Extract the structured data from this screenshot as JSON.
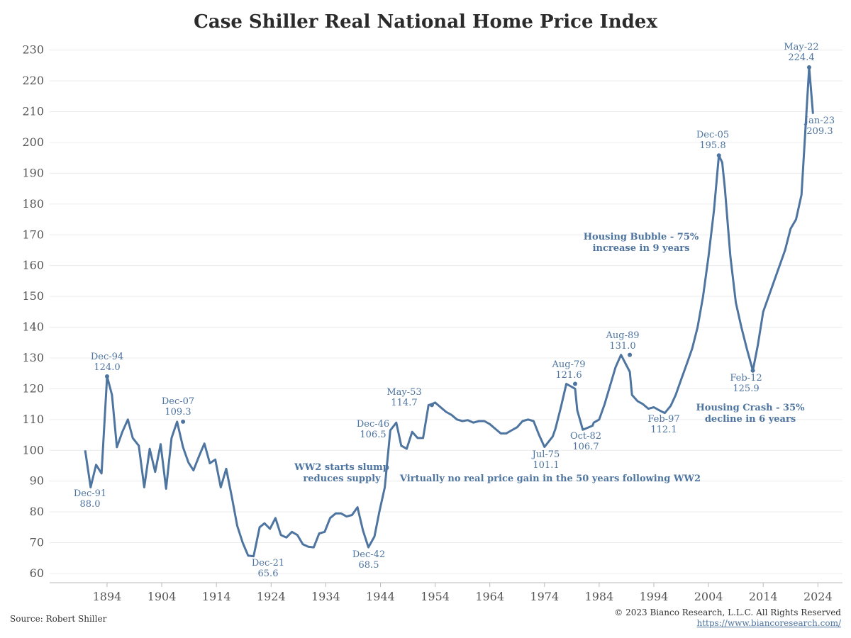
{
  "chart_data": {
    "type": "line",
    "title": "Case Shiller Real National Home Price Index",
    "ylim": [
      57,
      232
    ],
    "xlim": [
      1883.5,
      2028.5
    ],
    "yticks": [
      60,
      70,
      80,
      90,
      100,
      110,
      120,
      130,
      140,
      150,
      160,
      170,
      180,
      190,
      200,
      210,
      220,
      230
    ],
    "xticks": [
      1894,
      1904,
      1914,
      1924,
      1934,
      1944,
      1954,
      1964,
      1974,
      1984,
      1994,
      2004,
      2014,
      2024
    ],
    "grid": true,
    "color": "#4e74a0",
    "series": [
      {
        "x": [
          1890,
          1891,
          1892,
          1893,
          1894,
          1894.9,
          1895.8,
          1896.8,
          1897.8,
          1898.7,
          1899.8,
          1900.8,
          1901.8,
          1902.8,
          1903.8,
          1904.8,
          1905.8,
          1906.8,
          1907.9,
          1908.9,
          1909.8,
          1910.8,
          1911.8,
          1912.8,
          1913.8,
          1914.8,
          1915.8,
          1916.8,
          1917.8,
          1918.8,
          1919.8,
          1920.8,
          1921.9,
          1922.8,
          1923.8,
          1924.8,
          1925.8,
          1926.8,
          1927.8,
          1928.8,
          1929.8,
          1930.8,
          1931.8,
          1932.8,
          1933.8,
          1934.8,
          1935.8,
          1936.8,
          1937.8,
          1938.8,
          1939.8,
          1940.8,
          1941.8,
          1942.9,
          1943.8,
          1944.8,
          1945.8,
          1946.9,
          1947.8,
          1948.8,
          1949.8,
          1950.8,
          1951.8,
          1952.8,
          1953.4,
          1954,
          1955,
          1956,
          1957,
          1958,
          1959,
          1960,
          1961,
          1962,
          1963,
          1964,
          1965,
          1966,
          1967,
          1968,
          1969,
          1970,
          1971,
          1972,
          1973,
          1974,
          1975.5,
          1976,
          1977,
          1978,
          1979.6,
          1980,
          1981,
          1982.8,
          1983,
          1984,
          1985,
          1986,
          1987,
          1988,
          1989.6,
          1990,
          1991,
          1992,
          1993,
          1994,
          1995,
          1996,
          1997.1,
          1998,
          1999,
          2000,
          2001,
          2002,
          2003,
          2004,
          2005,
          2005.9,
          2006.5,
          2007,
          2008,
          2009,
          2010,
          2011,
          2012.1,
          2013,
          2014,
          2015,
          2016,
          2017,
          2018,
          2019,
          2020,
          2021,
          2022.4,
          2023.1
        ],
        "y": [
          100,
          88,
          95.3,
          92.5,
          124,
          118,
          101,
          106,
          110,
          104,
          101.5,
          88,
          100.5,
          93,
          102,
          87.5,
          104,
          109.3,
          101,
          96,
          93.5,
          98,
          102.2,
          95.8,
          97,
          88,
          94,
          85,
          75.5,
          70,
          65.8,
          65.6,
          75,
          76.3,
          74.5,
          78,
          72.5,
          71.7,
          73.5,
          72.5,
          69.5,
          68.7,
          68.5,
          73,
          73.5,
          78,
          79.5,
          79.5,
          78.5,
          79,
          81.5,
          74,
          68.5,
          72,
          80,
          88,
          106.5,
          109,
          101.5,
          100.5,
          106,
          104,
          104,
          114.7,
          115,
          115.5,
          114,
          112.5,
          111.5,
          110,
          109.5,
          109.8,
          109,
          109.5,
          109.5,
          108.5,
          107,
          105.5,
          105.5,
          106.5,
          107.5,
          109.5,
          110,
          109.5,
          105,
          101.1,
          104.5,
          107,
          114,
          121.6,
          120,
          113,
          106.7,
          108,
          109,
          110,
          115,
          121,
          127,
          131,
          125.5,
          118,
          116,
          115,
          113.5,
          114,
          113,
          112.1,
          114.5,
          118,
          123,
          128,
          133,
          140,
          150,
          163,
          178,
          195.8,
          193.5,
          185,
          163,
          148,
          140,
          133,
          125.9,
          134,
          145,
          150,
          155,
          160,
          165,
          172,
          175,
          183,
          224.4,
          209.3
        ]
      }
    ],
    "point_labels": [
      {
        "name": "Dec-91",
        "value": "88.0"
      },
      {
        "name": "Dec-94",
        "value": "124.0"
      },
      {
        "name": "Dec-07",
        "value": "109.3"
      },
      {
        "name": "Dec-21",
        "value": "65.6"
      },
      {
        "name": "Dec-42",
        "value": "68.5"
      },
      {
        "name": "Dec-46",
        "value": "106.5"
      },
      {
        "name": "May-53",
        "value": "114.7"
      },
      {
        "name": "Jul-75",
        "value": "101.1"
      },
      {
        "name": "Aug-79",
        "value": "121.6"
      },
      {
        "name": "Oct-82",
        "value": "106.7"
      },
      {
        "name": "Aug-89",
        "value": "131.0"
      },
      {
        "name": "Feb-97",
        "value": "112.1"
      },
      {
        "name": "Dec-05",
        "value": "195.8"
      },
      {
        "name": "Feb-12",
        "value": "125.9"
      },
      {
        "name": "May-22",
        "value": "224.4"
      },
      {
        "name": "Jan-23",
        "value": "209.3"
      }
    ],
    "annotations": [
      {
        "lines": [
          "WW2 starts slump",
          "reduces supply"
        ]
      },
      {
        "lines": [
          "Virtually no real price gain in the 50 years following WW2"
        ]
      },
      {
        "lines": [
          "Housing Bubble - 75%",
          "increase in 9 years"
        ]
      },
      {
        "lines": [
          "Housing Crash - 35%",
          "decline in 6 years"
        ]
      }
    ]
  },
  "footer": {
    "source": "Source: Robert Shiller",
    "copyright": "© 2023 Bianco Research, L.L.C. All Rights Reserved",
    "url": "https://www.biancoresearch.com/"
  }
}
